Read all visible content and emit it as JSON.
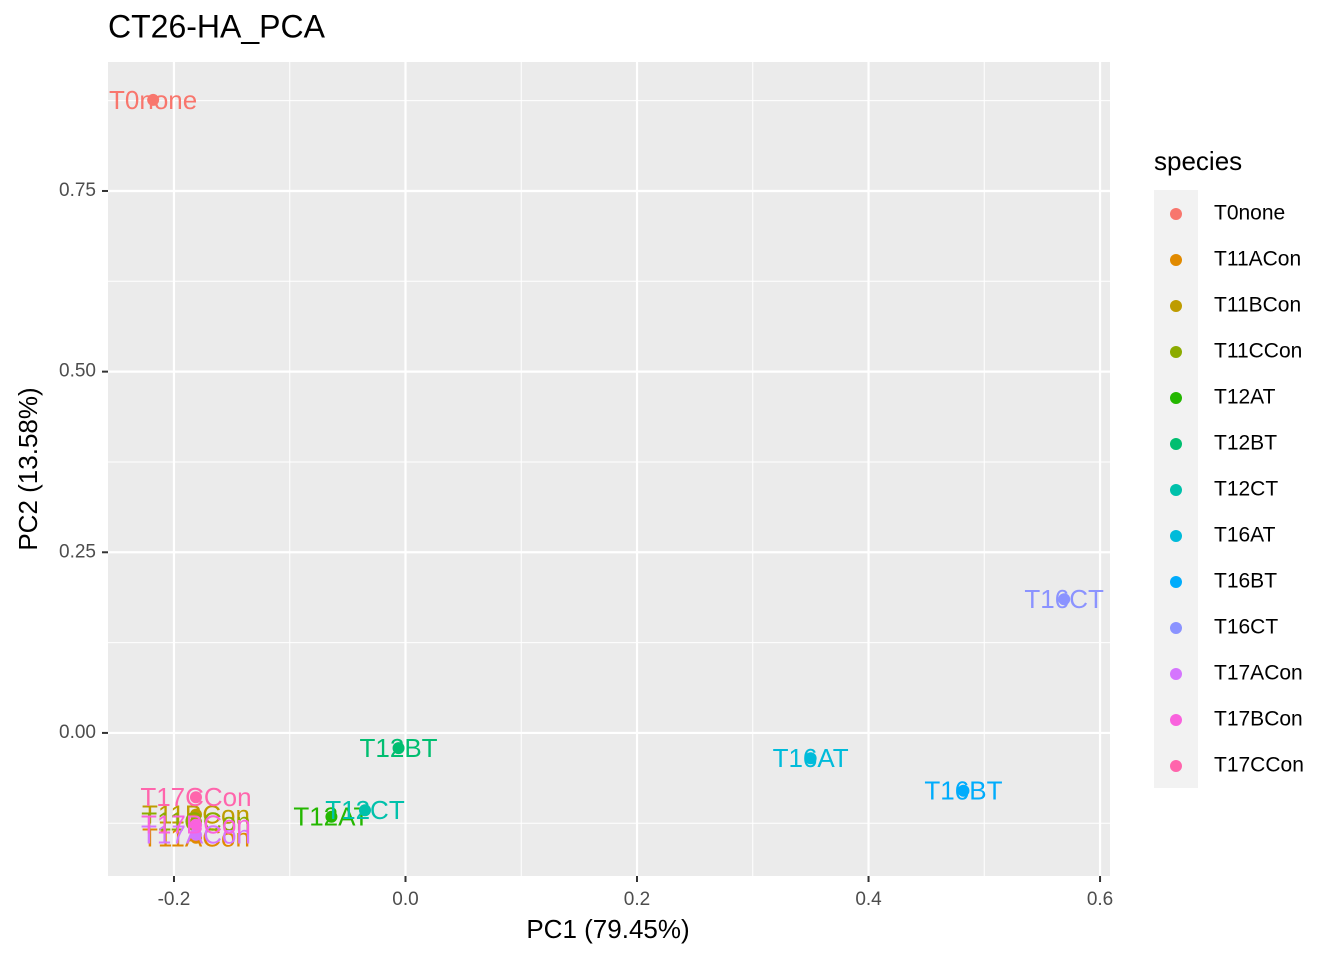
{
  "chart_data": {
    "type": "scatter",
    "title": "CT26-HA_PCA",
    "x_label": "PC1 (79.45%)",
    "y_label": "PC2 (13.58%)",
    "legend_title": "species",
    "legend": "right",
    "grid": true,
    "xlim": [
      -0.257,
      0.6086
    ],
    "ylim": [
      -0.198,
      0.9285
    ],
    "xticks": [
      -0.2,
      {
        "value": 0,
        "label": "0.0"
      },
      0.2,
      0.4,
      0.6
    ],
    "yticks": [
      {
        "value": 0,
        "label": "0.00"
      },
      0.25,
      {
        "value": 0.5,
        "label": "0.50"
      },
      0.75
    ],
    "x_minor_ticks": [
      -0.1,
      0.1,
      0.3,
      0.5
    ],
    "y_minor_ticks": [
      -0.125,
      0.125,
      0.375,
      0.625,
      0.875
    ],
    "series": [
      {
        "name": "T0none",
        "color": "#F8766D",
        "x": [
          -0.218
        ],
        "values": [
          0.876
        ]
      },
      {
        "name": "T11ACon",
        "color": "#E18A00",
        "x": [
          -0.181
        ],
        "values": [
          -0.145
        ]
      },
      {
        "name": "T11BCon",
        "color": "#BE9C00",
        "x": [
          -0.181
        ],
        "values": [
          -0.113
        ]
      },
      {
        "name": "T11CCon",
        "color": "#8CAB00",
        "x": [
          -0.181
        ],
        "values": [
          -0.123
        ]
      },
      {
        "name": "T12AT",
        "color": "#24B700",
        "x": [
          -0.064
        ],
        "values": [
          -0.116
        ]
      },
      {
        "name": "T12BT",
        "color": "#00BE70",
        "x": [
          -0.006
        ],
        "values": [
          -0.021
        ]
      },
      {
        "name": "T12CT",
        "color": "#00C1AB",
        "x": [
          -0.035
        ],
        "values": [
          -0.107
        ]
      },
      {
        "name": "T16AT",
        "color": "#00BBDA",
        "x": [
          0.35
        ],
        "values": [
          -0.035
        ]
      },
      {
        "name": "T16BT",
        "color": "#00ACFC",
        "x": [
          0.482
        ],
        "values": [
          -0.08
        ]
      },
      {
        "name": "T16CT",
        "color": "#8B93FF",
        "x": [
          0.569
        ],
        "values": [
          0.185
        ]
      },
      {
        "name": "T17ACon",
        "color": "#D575FE",
        "x": [
          -0.181
        ],
        "values": [
          -0.141
        ]
      },
      {
        "name": "T17BCon",
        "color": "#F962DD",
        "x": [
          -0.181
        ],
        "values": [
          -0.127
        ]
      },
      {
        "name": "T17CCon",
        "color": "#FF65AC",
        "x": [
          -0.181
        ],
        "values": [
          -0.089
        ]
      }
    ]
  }
}
